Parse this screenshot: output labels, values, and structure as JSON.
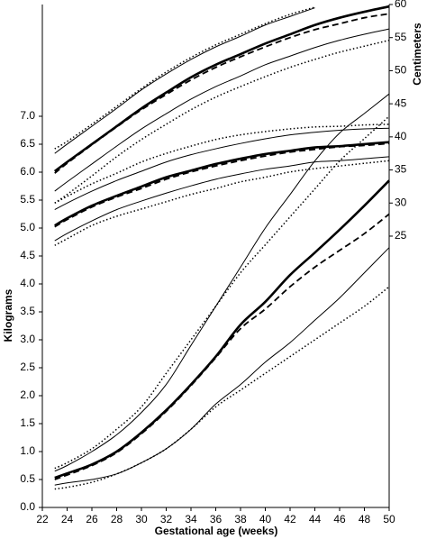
{
  "chart_data": {
    "type": "line",
    "x_label": "Gestational age (weeks)",
    "y_label": "Kilograms",
    "y2_label": "Centimeters",
    "x": [
      23,
      24,
      26,
      28,
      30,
      32,
      34,
      36,
      38,
      40,
      42,
      44,
      46,
      48,
      50
    ],
    "xlim": [
      22,
      50
    ],
    "xticks": [
      22,
      24,
      26,
      28,
      30,
      32,
      34,
      36,
      38,
      40,
      42,
      44,
      46,
      48,
      50
    ],
    "ylim": [
      0,
      9
    ],
    "yticks": [
      {
        "value": 0,
        "label": "0.0"
      },
      0.5,
      {
        "value": 1,
        "label": "1.0"
      },
      1.5,
      {
        "value": 2,
        "label": "2.0"
      },
      2.5,
      {
        "value": 3,
        "label": "3.0"
      },
      3.5,
      {
        "value": 4,
        "label": "4.0"
      },
      4.5,
      {
        "value": 5,
        "label": "5.0"
      },
      5.5,
      {
        "value": 6,
        "label": "6.0"
      },
      6.5,
      {
        "value": 7,
        "label": "7.0"
      }
    ],
    "y2lim": [
      -16,
      60
    ],
    "y2ticks": [
      25,
      30,
      35,
      40,
      45,
      50,
      55,
      60
    ],
    "series": [
      {
        "color": "#000000",
        "line_style": "solid",
        "line_width": 2.6,
        "values": [
          0.53,
          0.61,
          0.77,
          1.0,
          1.34,
          1.74,
          2.2,
          2.7,
          3.27,
          3.68,
          4.16,
          4.56,
          4.97,
          5.4,
          5.85
        ]
      },
      {
        "color": "#000000",
        "line_style": "solid",
        "line_width": 1,
        "values": [
          0.65,
          0.75,
          1.0,
          1.3,
          1.7,
          2.2,
          2.9,
          3.6,
          4.3,
          5.0,
          5.6,
          6.2,
          6.7,
          7.05,
          7.4
        ]
      },
      {
        "color": "#000000",
        "line_style": "solid",
        "line_width": 1,
        "values": [
          0.4,
          0.44,
          0.5,
          0.6,
          0.8,
          1.05,
          1.4,
          1.85,
          2.2,
          2.6,
          2.95,
          3.35,
          3.75,
          4.2,
          4.65
        ]
      },
      {
        "color": "#000000",
        "line_style": "dashed",
        "line_width": 1.8,
        "values": [
          0.5,
          0.58,
          0.75,
          0.98,
          1.32,
          1.72,
          2.18,
          2.68,
          3.2,
          3.55,
          3.95,
          4.3,
          4.6,
          4.9,
          5.25
        ]
      },
      {
        "color": "#000000",
        "line_style": "dotted",
        "line_width": 1.5,
        "values": [
          0.7,
          0.8,
          1.05,
          1.4,
          1.8,
          2.4,
          3.0,
          3.6,
          4.2,
          4.7,
          5.2,
          5.7,
          6.2,
          6.6,
          7.0
        ]
      },
      {
        "color": "#000000",
        "line_style": "dotted",
        "line_width": 1.5,
        "values": [
          0.33,
          0.36,
          0.45,
          0.6,
          0.8,
          1.05,
          1.4,
          1.8,
          2.1,
          2.4,
          2.7,
          3.0,
          3.3,
          3.6,
          3.95
        ]
      },
      {
        "axis": "y2",
        "color": "#000000",
        "line_style": "solid",
        "line_width": 2.6,
        "values": [
          34.8,
          36.2,
          38.9,
          41.6,
          44.3,
          46.7,
          49.0,
          50.9,
          52.5,
          54.1,
          55.5,
          56.9,
          58.0,
          58.9,
          59.7
        ]
      },
      {
        "axis": "y2",
        "color": "#000000",
        "line_style": "solid",
        "line_width": 1,
        "values": [
          37.5,
          38.9,
          41.6,
          44.3,
          47.1,
          49.5,
          51.7,
          53.6,
          55.2,
          56.9,
          58.2,
          59.5,
          null,
          null,
          null
        ]
      },
      {
        "axis": "y2",
        "color": "#000000",
        "line_style": "solid",
        "line_width": 1,
        "values": [
          31.8,
          33.2,
          35.9,
          38.6,
          41.2,
          43.5,
          45.7,
          47.6,
          49.2,
          50.9,
          52.2,
          53.5,
          54.6,
          55.5,
          56.3
        ]
      },
      {
        "axis": "y2",
        "color": "#000000",
        "line_style": "dashed",
        "line_width": 1.8,
        "values": [
          34.5,
          36.0,
          38.8,
          41.5,
          44.1,
          46.4,
          48.6,
          50.5,
          52.1,
          53.6,
          55.0,
          56.2,
          57.1,
          58.0,
          58.6
        ]
      },
      {
        "axis": "y2",
        "color": "#000000",
        "line_style": "dotted",
        "line_width": 1.5,
        "values": [
          38.2,
          39.3,
          41.9,
          44.6,
          47.3,
          49.8,
          52.0,
          53.9,
          55.5,
          57.1,
          58.5,
          59.6,
          null,
          null,
          null
        ]
      },
      {
        "axis": "y2",
        "color": "#000000",
        "line_style": "dotted",
        "line_width": 1.5,
        "values": [
          30.0,
          31.3,
          34.1,
          37.0,
          39.6,
          41.9,
          44.1,
          46.0,
          47.6,
          49.1,
          50.5,
          51.7,
          52.8,
          53.7,
          54.6
        ]
      },
      {
        "axis": "y2",
        "color": "#000000",
        "line_style": "solid",
        "line_width": 2.6,
        "values": [
          26.6,
          27.7,
          29.6,
          31.1,
          32.5,
          33.9,
          34.9,
          35.9,
          36.7,
          37.4,
          37.9,
          38.4,
          38.6,
          38.9,
          39.2
        ]
      },
      {
        "axis": "y2",
        "color": "#000000",
        "line_style": "solid",
        "line_width": 1,
        "values": [
          29.0,
          30.0,
          31.8,
          33.4,
          34.8,
          36.2,
          37.3,
          38.2,
          39.0,
          39.7,
          40.3,
          40.7,
          41.0,
          41.2,
          41.3
        ]
      },
      {
        "axis": "y2",
        "color": "#000000",
        "line_style": "solid",
        "line_width": 1,
        "values": [
          24.3,
          25.4,
          27.3,
          29.0,
          30.3,
          31.5,
          32.6,
          33.6,
          34.4,
          35.1,
          35.6,
          36.2,
          36.4,
          36.7,
          37.0
        ]
      },
      {
        "axis": "y2",
        "color": "#000000",
        "line_style": "dashed",
        "line_width": 1.8,
        "values": [
          26.4,
          27.5,
          29.4,
          30.9,
          32.2,
          33.6,
          34.7,
          35.6,
          36.4,
          37.1,
          37.7,
          38.1,
          38.5,
          38.7,
          39.0
        ]
      },
      {
        "axis": "y2",
        "color": "#000000",
        "line_style": "dotted",
        "line_width": 1.5,
        "values": [
          30.0,
          31.0,
          32.9,
          34.5,
          36.2,
          37.5,
          38.6,
          39.6,
          40.3,
          40.8,
          41.2,
          41.5,
          41.6,
          41.8,
          41.9
        ]
      },
      {
        "axis": "y2",
        "color": "#000000",
        "line_style": "dotted",
        "line_width": 1.5,
        "values": [
          23.6,
          24.6,
          26.6,
          28.0,
          29.1,
          30.2,
          31.3,
          32.2,
          33.2,
          33.9,
          34.7,
          35.2,
          35.6,
          36.0,
          36.4
        ]
      }
    ]
  }
}
